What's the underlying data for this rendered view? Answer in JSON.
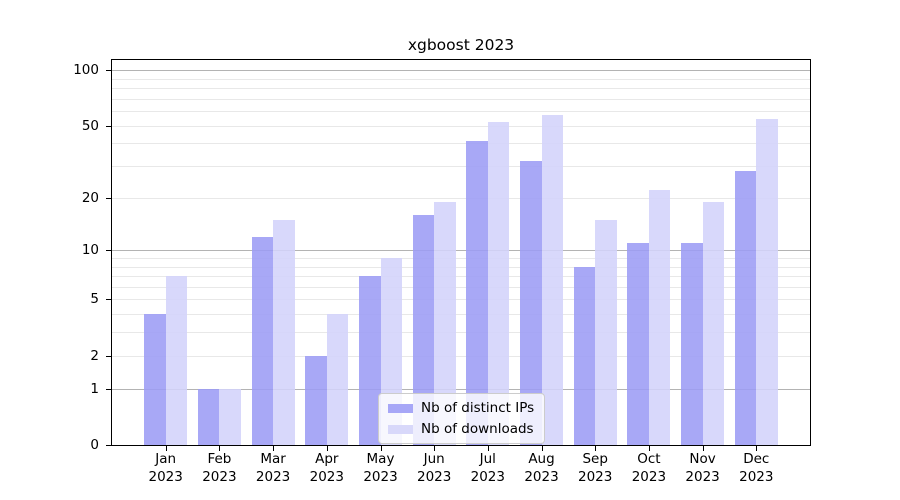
{
  "title": "xgboost 2023",
  "colors": {
    "ips_bar": "#9c9cf5",
    "downloads_bar": "#d3d3fa",
    "ips_rendered": "#a7a7f7",
    "downloads_rendered": "#d8d8fa",
    "grid_major": "#b3b3b3",
    "grid_minor": "#e8e8e8",
    "axis": "#000000",
    "legend_border": "#cccccc",
    "legend_background": "rgba(255,255,255,0.8)",
    "text": "#000000"
  },
  "chart_data": {
    "type": "bar",
    "title": "xgboost 2023",
    "categories": [
      "Jan 2023",
      "Feb 2023",
      "Mar 2023",
      "Apr 2023",
      "May 2023",
      "Jun 2023",
      "Jul 2023",
      "Aug 2023",
      "Sep 2023",
      "Oct 2023",
      "Nov 2023",
      "Dec 2023"
    ],
    "series": [
      {
        "name": "Nb of distinct IPs",
        "values": [
          4,
          1,
          12,
          2,
          7,
          16,
          41,
          32,
          8,
          11,
          11,
          28
        ]
      },
      {
        "name": "Nb of downloads",
        "values": [
          7,
          1,
          15,
          4,
          9,
          19,
          52,
          57,
          15,
          22,
          19,
          54
        ]
      }
    ],
    "xlabel": "",
    "ylabel": "",
    "yscale": "log1p",
    "ylim": [
      0,
      113
    ],
    "yticks": [
      0,
      1,
      2,
      5,
      10,
      20,
      50,
      100
    ],
    "major_gridlines": [
      1,
      10,
      100
    ],
    "minor_gridlines": [
      2,
      3,
      4,
      5,
      6,
      7,
      8,
      9,
      20,
      30,
      40,
      50,
      60,
      70,
      80,
      90
    ],
    "grid": true,
    "legend_position": "lower center"
  },
  "legend": {
    "items": [
      {
        "label": "Nb of distinct IPs",
        "swatch": "ips"
      },
      {
        "label": "Nb of downloads",
        "swatch": "downloads"
      }
    ]
  }
}
